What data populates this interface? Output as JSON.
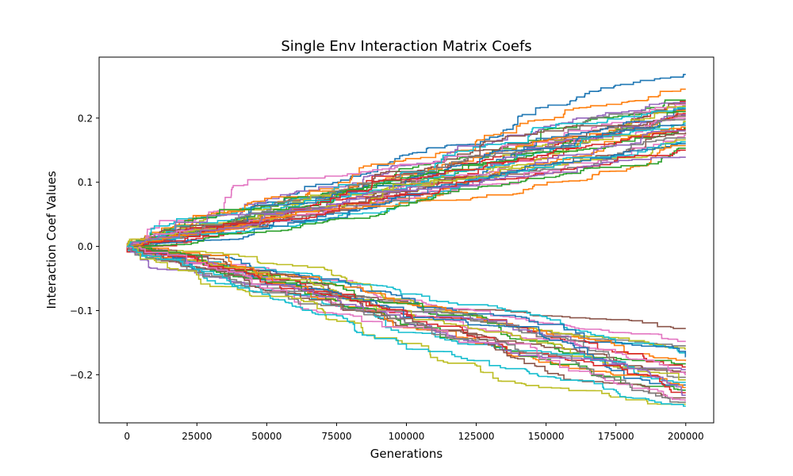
{
  "chart_data": {
    "type": "line",
    "title": "Single Env Interaction Matrix Coefs",
    "xlabel": "Generations",
    "ylabel": "Interaction Coef Values",
    "xlim": [
      -10000,
      210000
    ],
    "ylim": [
      -0.275,
      0.295
    ],
    "xticks": [
      0,
      25000,
      50000,
      75000,
      100000,
      125000,
      150000,
      175000,
      200000
    ],
    "xtick_labels": [
      "0",
      "25000",
      "50000",
      "75000",
      "100000",
      "125000",
      "150000",
      "175000",
      "200000"
    ],
    "yticks": [
      -0.2,
      -0.1,
      0.0,
      0.1,
      0.2
    ],
    "ytick_labels": [
      "−0.2",
      "−0.1",
      "0.0",
      "0.1",
      "0.2"
    ],
    "grid": false,
    "legend": "none",
    "series_count": 60,
    "palette": [
      "#1f77b4",
      "#ff7f0e",
      "#2ca02c",
      "#d62728",
      "#9467bd",
      "#8c564b",
      "#e377c2",
      "#7f7f7f",
      "#bcbd22",
      "#17becf"
    ],
    "final_values": [
      0.268,
      0.245,
      0.228,
      0.226,
      0.224,
      0.222,
      0.221,
      0.219,
      0.218,
      0.216,
      0.214,
      0.212,
      0.21,
      0.207,
      0.205,
      0.203,
      0.2,
      0.198,
      0.195,
      0.192,
      0.189,
      0.186,
      0.184,
      0.182,
      0.18,
      0.177,
      0.173,
      0.169,
      0.166,
      0.163,
      0.16,
      0.157,
      0.153,
      0.15,
      0.139,
      -0.128,
      -0.148,
      -0.155,
      -0.16,
      -0.166,
      -0.172,
      -0.178,
      -0.183,
      -0.188,
      -0.192,
      -0.196,
      -0.2,
      -0.204,
      -0.208,
      -0.212,
      -0.216,
      -0.22,
      -0.224,
      -0.228,
      -0.232,
      -0.236,
      -0.24,
      -0.243,
      -0.246,
      -0.249
    ]
  }
}
